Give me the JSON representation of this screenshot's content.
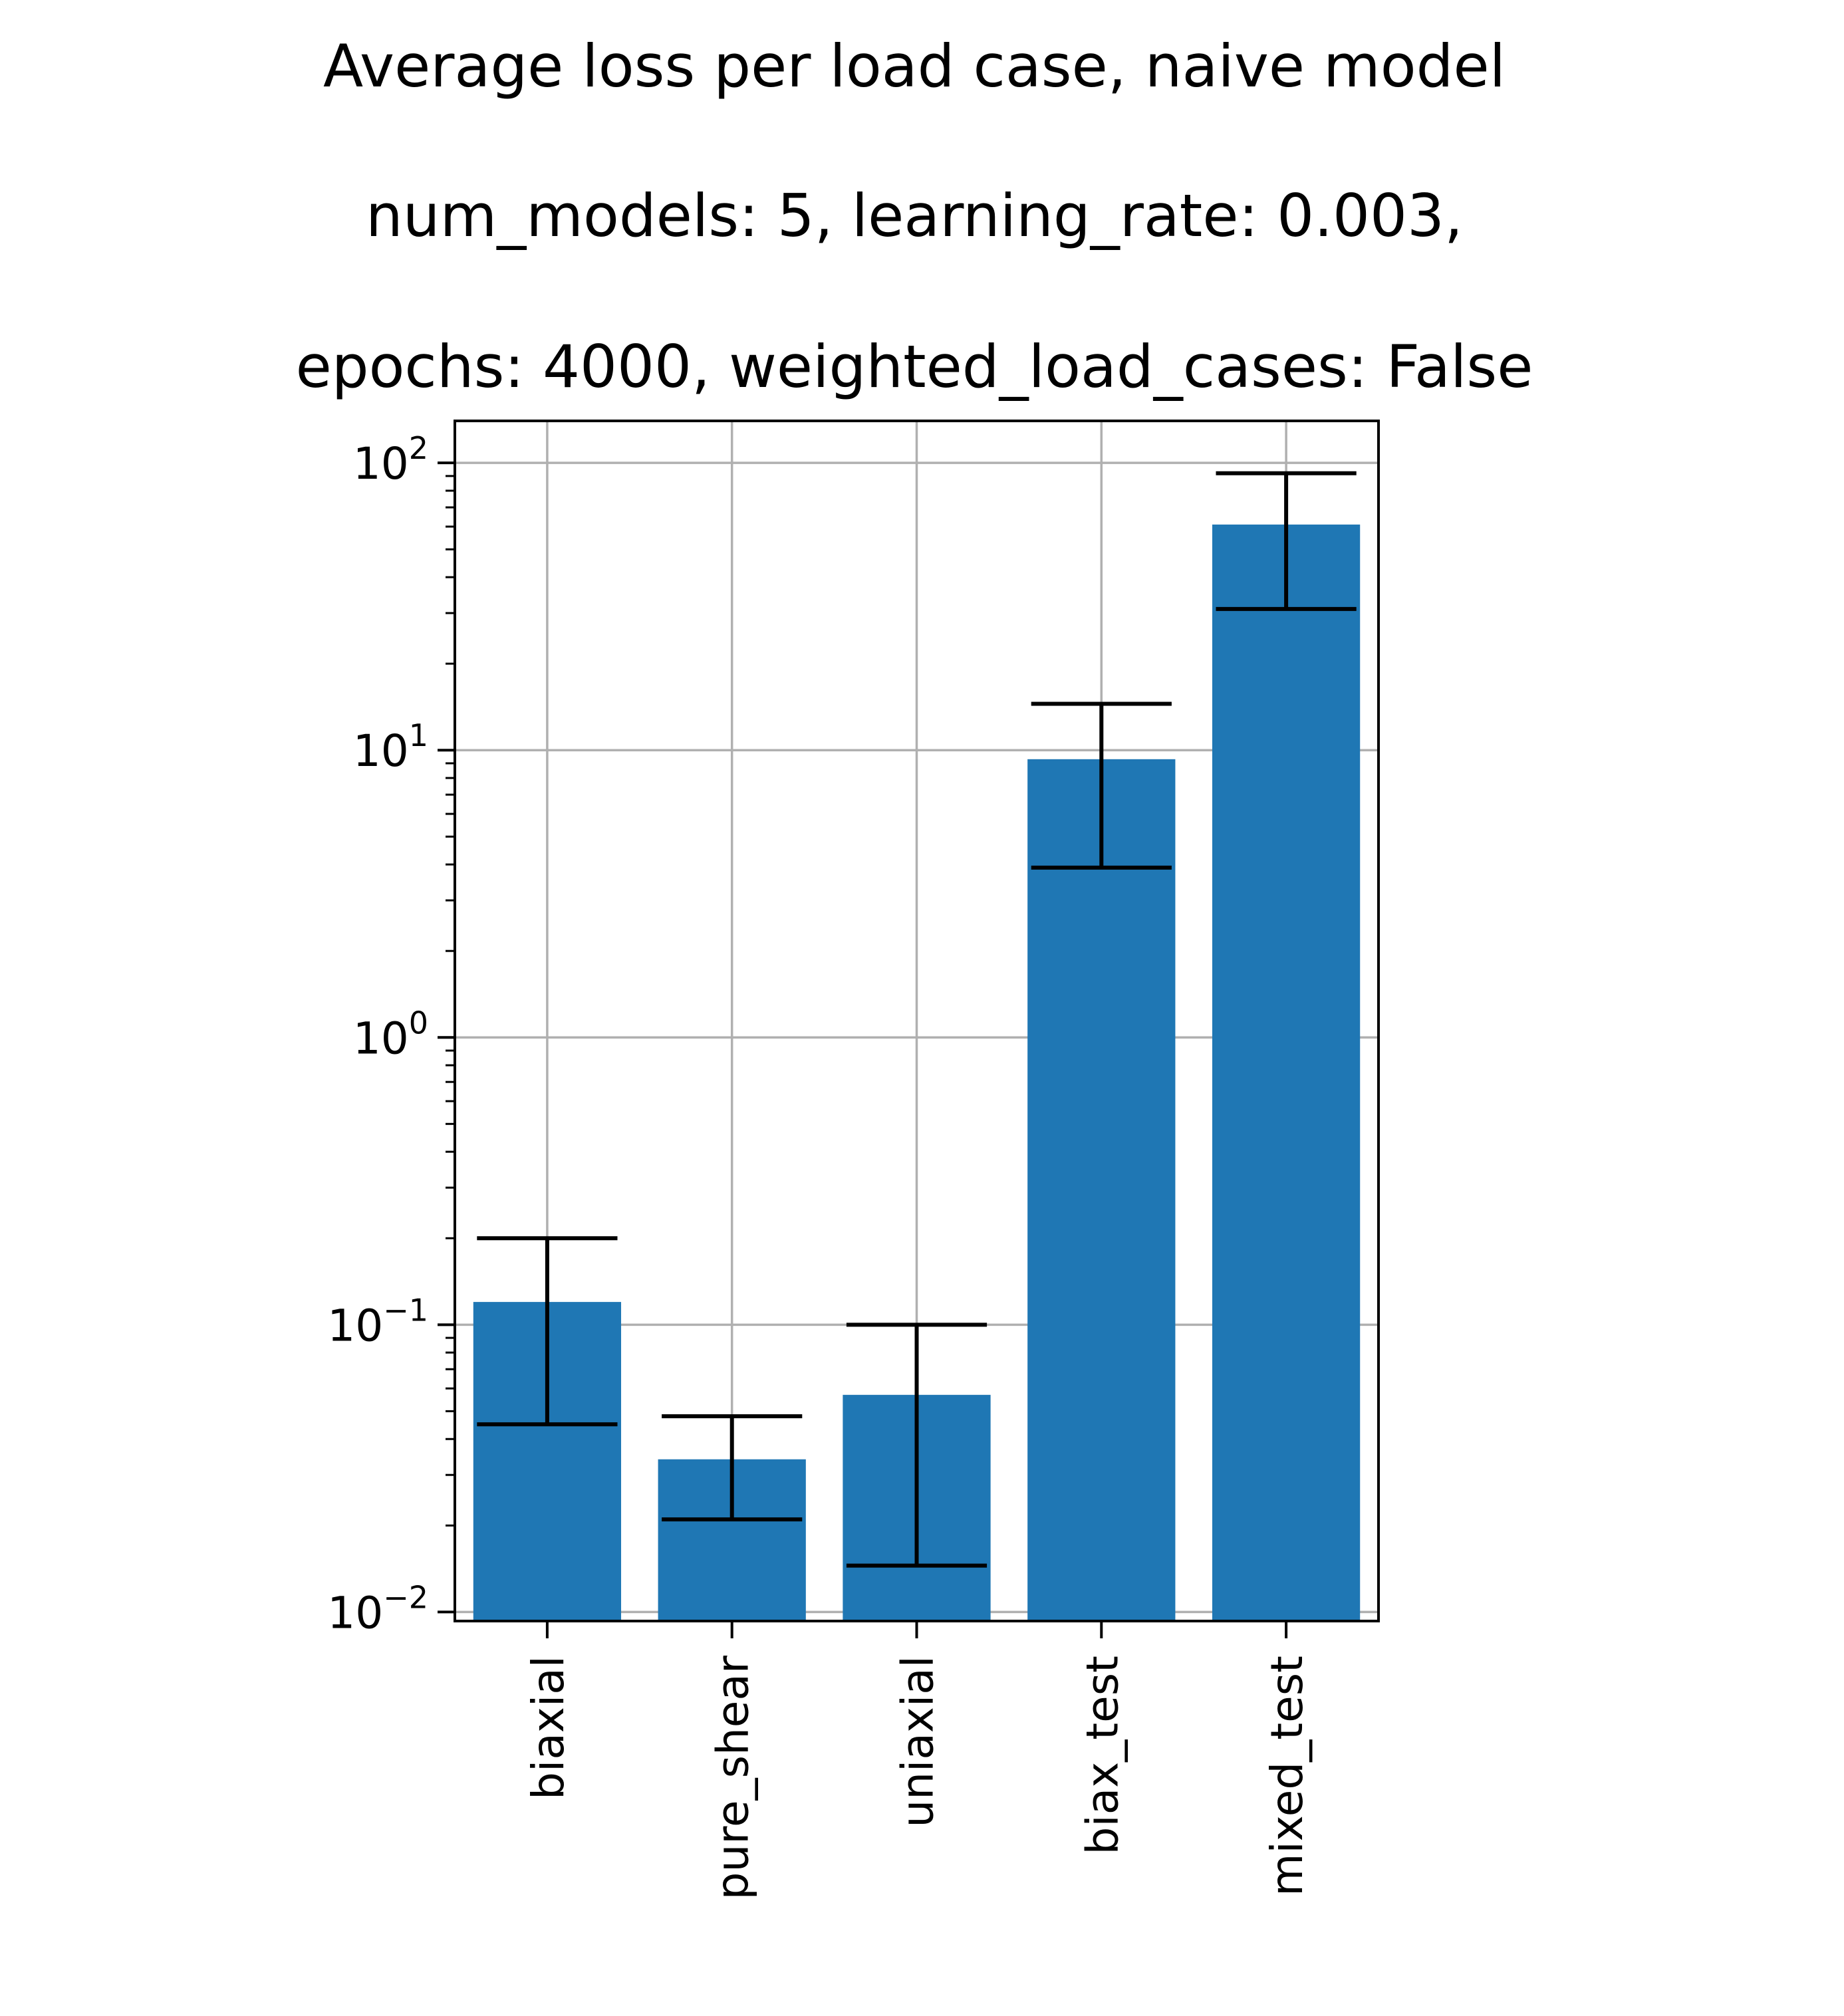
{
  "chart_data": {
    "type": "bar",
    "title_lines": [
      "Average loss per load case, naive model",
      "num_models: 5, learning_rate: 0.003,",
      "epochs: 4000, weighted_load_cases: False"
    ],
    "xlabel": "",
    "ylabel": "",
    "y_scale": "log",
    "ylim": [
      0.0093,
      140
    ],
    "y_tick_values": [
      0.01,
      0.1,
      1,
      10,
      100
    ],
    "y_tick_labels": [
      {
        "base": "10",
        "exp": "−2"
      },
      {
        "base": "10",
        "exp": "−1"
      },
      {
        "base": "10",
        "exp": "0"
      },
      {
        "base": "10",
        "exp": "1"
      },
      {
        "base": "10",
        "exp": "2"
      }
    ],
    "categories": [
      "biaxial",
      "pure_shear",
      "uniaxial",
      "biax_test",
      "mixed_test"
    ],
    "values": [
      0.12,
      0.034,
      0.057,
      9.3,
      61
    ],
    "error_low": [
      0.045,
      0.021,
      0.0145,
      3.9,
      31
    ],
    "error_high": [
      0.2,
      0.048,
      0.1,
      14.5,
      92
    ],
    "grid": true,
    "legend": false,
    "colors": {
      "bar": "#1f77b4",
      "errorbar": "#000000",
      "grid": "#b0b0b0",
      "axes": "#000000"
    }
  }
}
